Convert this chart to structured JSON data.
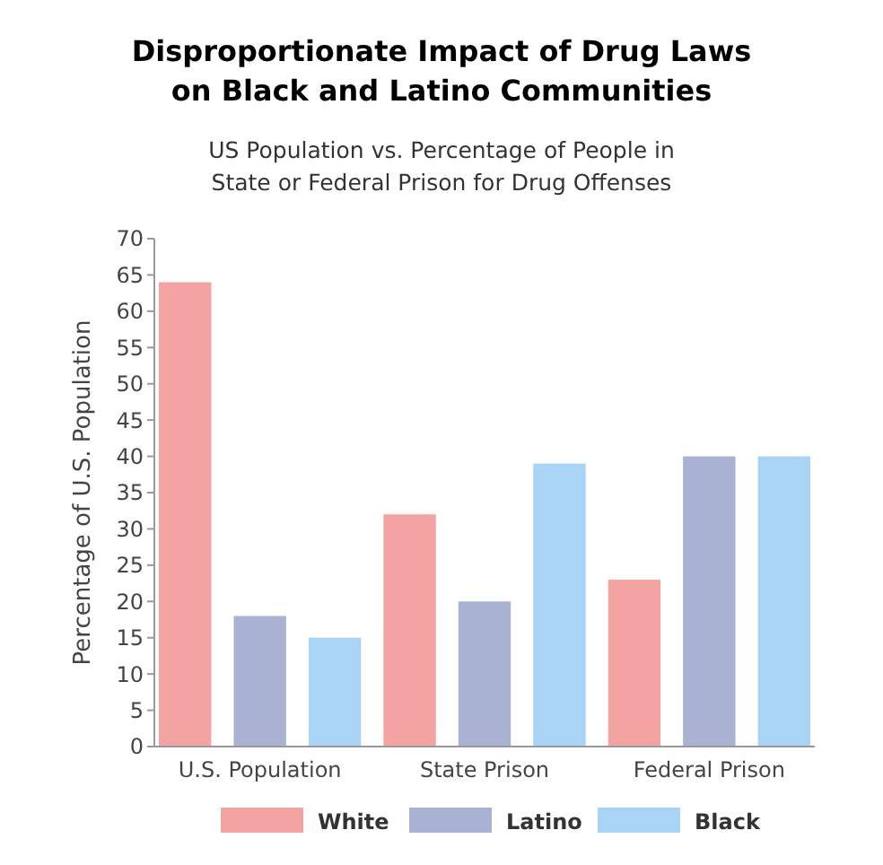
{
  "chart_data": {
    "type": "bar",
    "title": "Disproportionate Impact of Drug Laws on Black and Latino Communities",
    "subtitle": "US Population vs. Percentage of People in State or Federal Prison for Drug Offenses",
    "ylabel": "Percentage of U.S. Population",
    "categories": [
      "U.S. Population",
      "State Prison",
      "Federal Prison"
    ],
    "series": [
      {
        "name": "White",
        "color": "#f4a3a3",
        "values": [
          64,
          32,
          23
        ]
      },
      {
        "name": "Latino",
        "color": "#a9b2d2",
        "values": [
          18,
          20,
          40
        ]
      },
      {
        "name": "Black",
        "color": "#a9d4f5",
        "values": [
          15,
          39,
          40
        ]
      }
    ],
    "ylim": [
      0,
      70
    ],
    "yticks": [
      0,
      5,
      10,
      15,
      20,
      25,
      30,
      35,
      40,
      45,
      50,
      55,
      60,
      65,
      70
    ],
    "grid": false,
    "legend": "bottom"
  }
}
